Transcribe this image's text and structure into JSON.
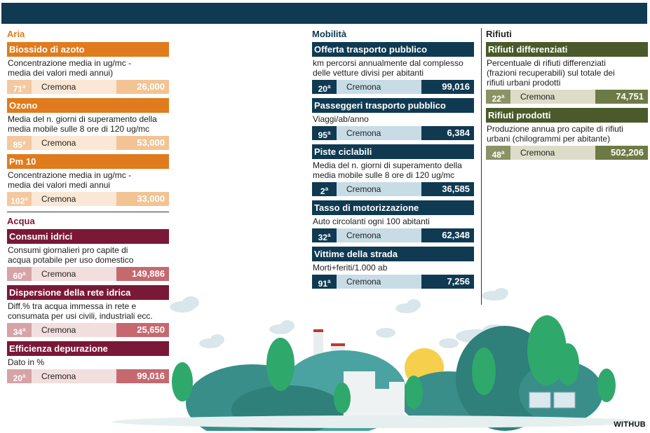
{
  "credit": "WITHUB",
  "columns": {
    "aria": {
      "title": "Aria",
      "blocks": [
        {
          "title": "Biossido di azoto",
          "desc": "Concentrazione media in ug/mc -\nmedia dei valori medi annui)",
          "rank": "71",
          "rank_sup": "a",
          "city": "Cremona",
          "value": "26,000"
        },
        {
          "title": "Ozono",
          "desc": "Media del n. giorni di superamento della\nmedia mobile sulle 8 ore di 120 ug/mc",
          "rank": "85",
          "rank_sup": "a",
          "city": "Cremona",
          "value": "53,000"
        },
        {
          "title": "Pm 10",
          "desc": "Concentrazione media in ug/mc -\nmedia dei valori medi annui",
          "rank": "102",
          "rank_sup": "a",
          "city": "Cremona",
          "value": "33,000"
        }
      ]
    },
    "acqua": {
      "title": "Acqua",
      "blocks": [
        {
          "title": "Consumi idrici",
          "desc": "Consumi giornalieri pro capite di\nacqua potabile per uso domestico",
          "rank": "60",
          "rank_sup": "a",
          "city": "Cremona",
          "value": "149,886"
        },
        {
          "title": "Dispersione della rete idrica",
          "desc": "Diff.% tra acqua immessa in rete e\nconsumata per usi civili, industriali ecc.",
          "rank": "34",
          "rank_sup": "a",
          "city": "Cremona",
          "value": "25,650"
        },
        {
          "title": "Efficienza depurazione",
          "desc": "Dato in %",
          "rank": "20",
          "rank_sup": "a",
          "city": "Cremona",
          "value": "99,016"
        }
      ]
    },
    "mobilita": {
      "title": "Mobilità",
      "blocks": [
        {
          "title": "Offerta trasporto pubblico",
          "desc": "km percorsi annualmente dal complesso\ndelle vetture divisi per abitanti",
          "rank": "20",
          "rank_sup": "a",
          "city": "Cremona",
          "value": "99,016"
        },
        {
          "title": "Passeggeri trasporto pubblico",
          "desc": "Viaggi/ab/anno",
          "rank": "95",
          "rank_sup": "a",
          "city": "Cremona",
          "value": "6,384"
        },
        {
          "title": "Piste ciclabili",
          "desc": "Media del n. giorni di superamento della\nmedia mobile sulle 8 ore di 120 ug/mc",
          "rank": "2",
          "rank_sup": "a",
          "city": "Cremona",
          "value": "36,585"
        },
        {
          "title": "Tasso di motorizzazione",
          "desc": "Auto circolanti ogni 100 abitanti",
          "rank": "32",
          "rank_sup": "a",
          "city": "Cremona",
          "value": "62,348"
        },
        {
          "title": "Vittime della strada",
          "desc": "Morti+feriti/1.000 ab",
          "rank": "91",
          "rank_sup": "a",
          "city": "Cremona",
          "value": "7,256"
        }
      ]
    },
    "rifiuti": {
      "title": "Rifiuti",
      "blocks": [
        {
          "title": "Rifiuti differenziati",
          "desc": "Percentuale di rifiuti differenziati\n(frazioni recuperabili) sul totale dei\nrifiuti urbani prodotti",
          "rank": "22",
          "rank_sup": "a",
          "city": "Cremona",
          "value": "74,751"
        },
        {
          "title": "Rifiuti prodotti",
          "desc": "Produzione annua pro capite di rifiuti\nurbani (chilogrammi per abitante)",
          "rank": "48",
          "rank_sup": "a",
          "city": "Cremona",
          "value": "502,206"
        }
      ]
    }
  }
}
